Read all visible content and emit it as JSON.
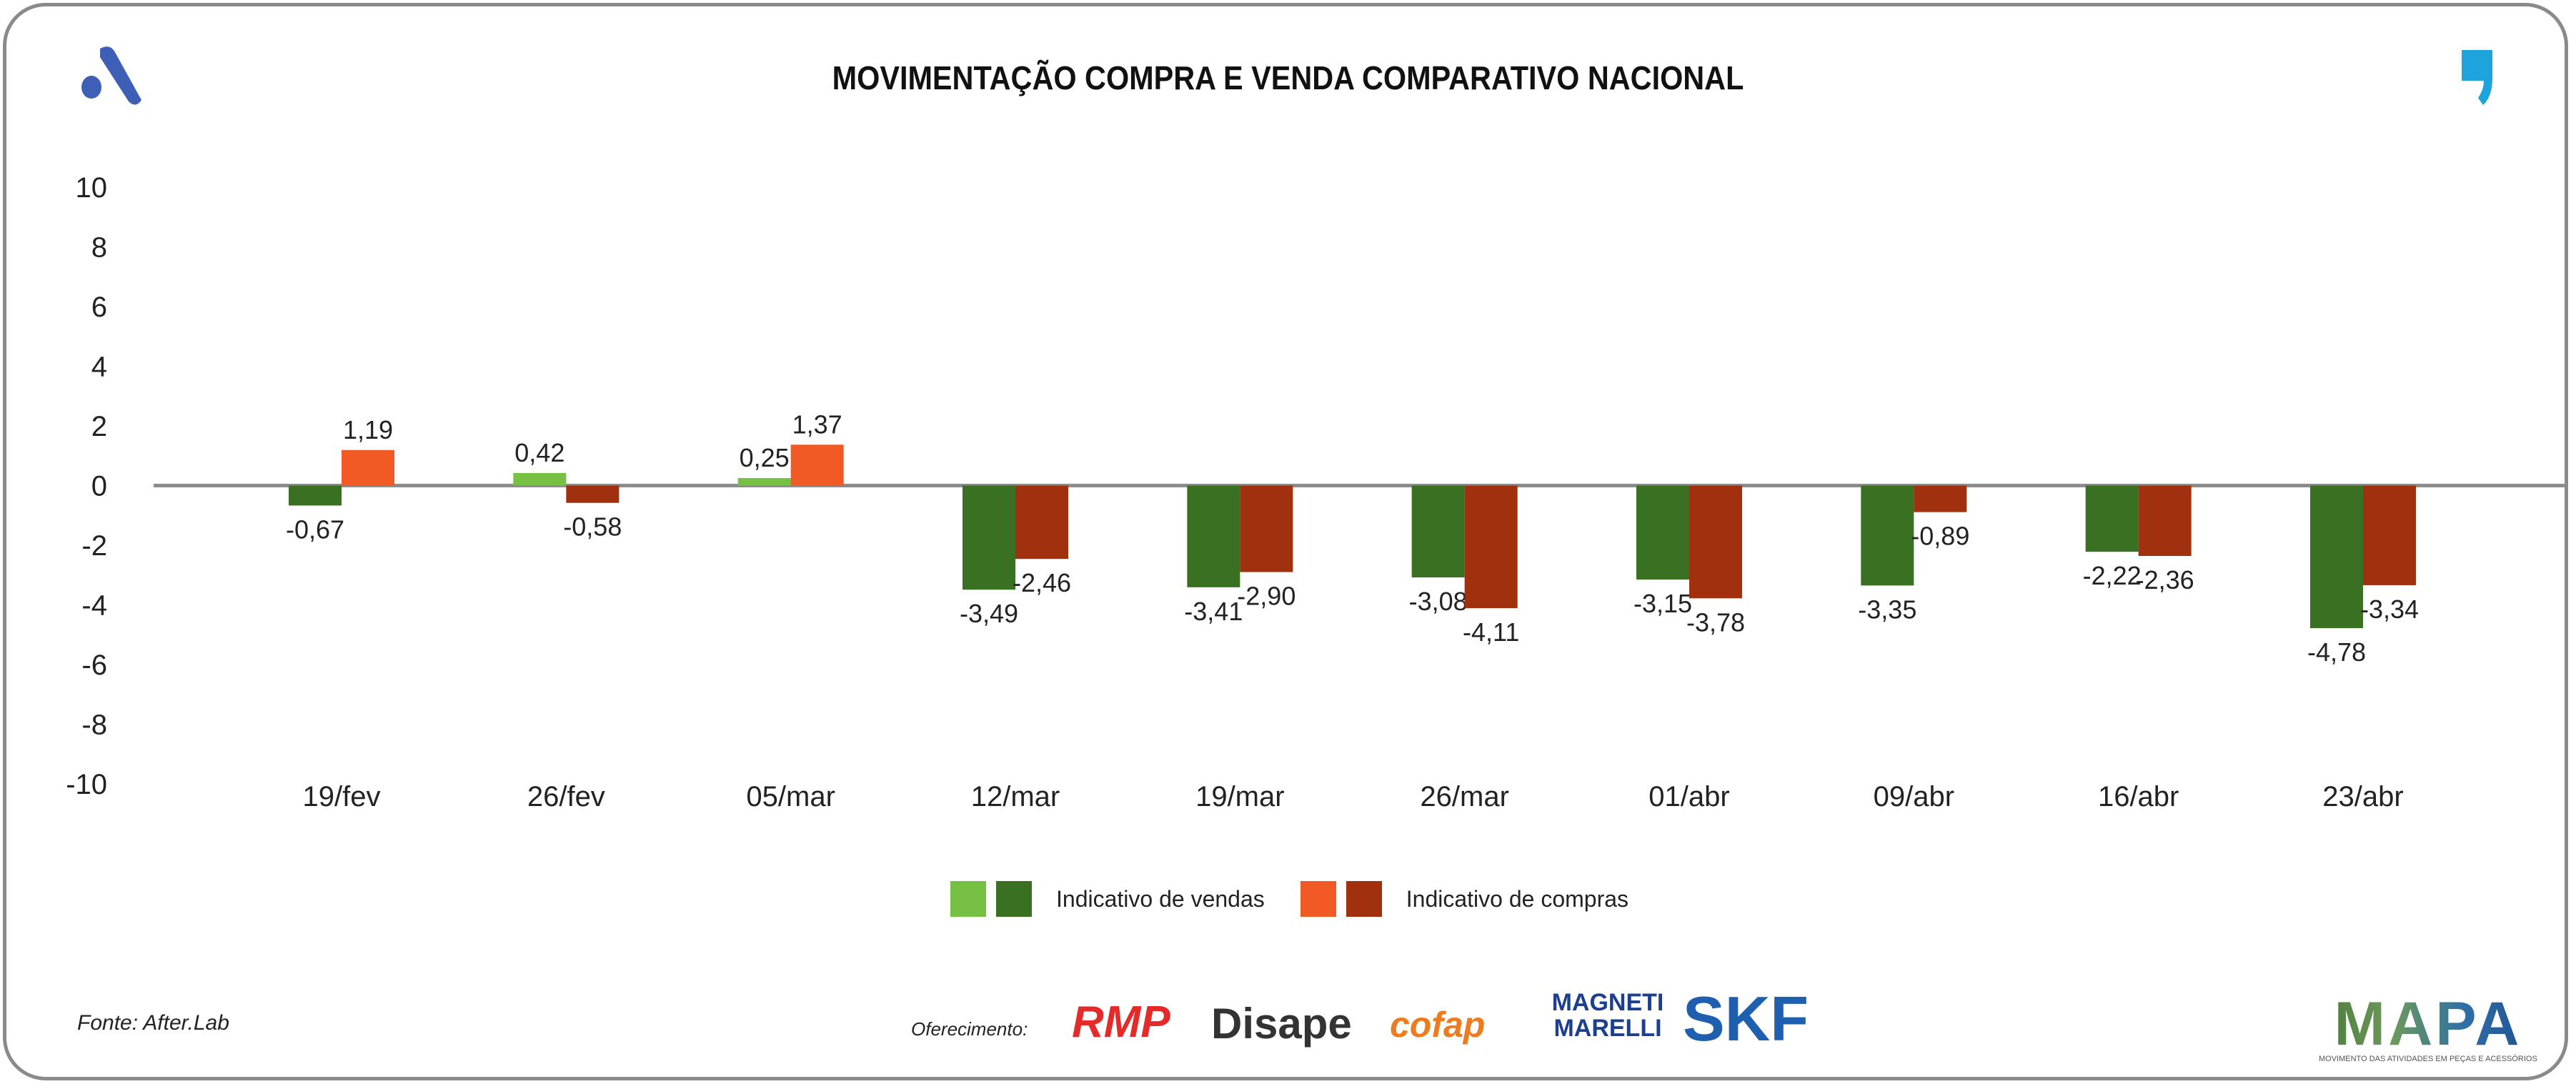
{
  "title": "MOVIMENTAÇÃO COMPRA E VENDA COMPARATIVO NACIONAL",
  "colors": {
    "vendas_pos": "#76c043",
    "vendas_neg": "#3a7022",
    "compras_pos": "#f15a24",
    "compras_neg": "#a1300f",
    "axis": "#8c8c8c"
  },
  "chart_data": {
    "type": "bar",
    "title": "MOVIMENTAÇÃO COMPRA E VENDA COMPARATIVO NACIONAL",
    "categories": [
      "19/fev",
      "26/fev",
      "05/mar",
      "12/mar",
      "19/mar",
      "26/mar",
      "01/abr",
      "09/abr",
      "16/abr",
      "23/abr"
    ],
    "series": [
      {
        "name": "Indicativo de vendas",
        "values": [
          -0.67,
          0.42,
          0.25,
          -3.49,
          -3.41,
          -3.08,
          -3.15,
          -3.35,
          -2.22,
          -4.78
        ],
        "labels": [
          "-0,67",
          "0,42",
          "0,25",
          "-3,49",
          "-3,41",
          "-3,08",
          "-3,15",
          "-3,35",
          "-2,22",
          "-4,78"
        ]
      },
      {
        "name": "Indicativo de compras",
        "values": [
          1.19,
          -0.58,
          1.37,
          -2.46,
          -2.9,
          -4.11,
          -3.78,
          -0.89,
          -2.36,
          -3.34
        ],
        "labels": [
          "1,19",
          "-0,58",
          "1,37",
          "-2,46",
          "-2,90",
          "-4,11",
          "-3,78",
          "-0,89",
          "-2,36",
          "-3,34"
        ]
      }
    ],
    "yticks": [
      "10",
      "8",
      "6",
      "4",
      "2",
      "0",
      "-2",
      "-4",
      "-6",
      "-8",
      "-10"
    ],
    "ylim": [
      -10,
      10
    ],
    "xlabel": "",
    "ylabel": "",
    "grid": false,
    "legend_position": "bottom-center"
  },
  "legend": {
    "vendas": "Indicativo de vendas",
    "compras": "Indicativo de compras"
  },
  "footer": {
    "fonte": "Fonte: After.Lab",
    "oferecimento": "Oferecimento:",
    "sponsors": [
      "RMP",
      "Disape",
      "cofap",
      "MAGNETI MARELLI",
      "SKF"
    ],
    "mapa": "MAPA",
    "mapa_sub": "MOVIMENTO DAS ATIVIDADES EM PEÇAS E ACESSÓRIOS"
  }
}
